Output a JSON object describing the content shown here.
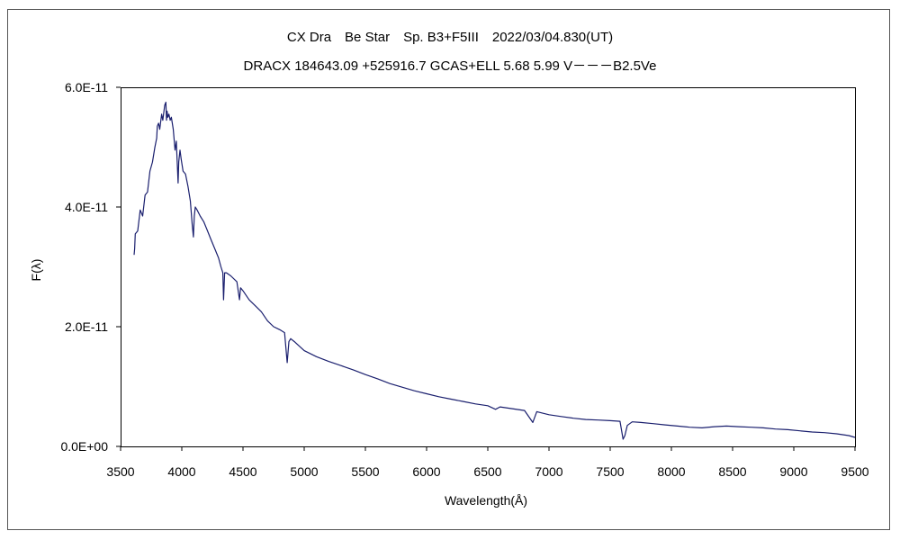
{
  "chart_data": {
    "type": "line",
    "title": "CX Dra　Be Star　Sp. B3+F5III　2022/03/04.830(UT)",
    "subtitle": "DRACX 184643.09 +525916.7 GCAS+ELL 5.68 5.99 V－－－B2.5Ve",
    "xlabel": "Wavelength(Å)",
    "ylabel": "F(λ)",
    "xlim": [
      3500,
      9500
    ],
    "ylim": [
      0,
      6e-11
    ],
    "x_ticks": [
      3500,
      4000,
      4500,
      5000,
      5500,
      6000,
      6500,
      7000,
      7500,
      8000,
      8500,
      9000,
      9500
    ],
    "x_tick_labels": [
      "3500",
      "4000",
      "4500",
      "5000",
      "5500",
      "6000",
      "6500",
      "7000",
      "7500",
      "8000",
      "8500",
      "9000",
      "9500"
    ],
    "y_ticks": [
      0,
      2e-11,
      4e-11,
      6e-11
    ],
    "y_tick_labels": [
      "0.0E+00",
      "2.0E-11",
      "4.0E-11",
      "6.0E-11"
    ],
    "grid": false,
    "legend": "none",
    "colors": {
      "line": "#1a1f6e",
      "frame": "#000000",
      "outer_border": "#555555"
    },
    "series": [
      {
        "x": [
          3610,
          3615,
          3620,
          3640,
          3660,
          3680,
          3700,
          3720,
          3740,
          3760,
          3780,
          3795,
          3800,
          3810,
          3820,
          3835,
          3845,
          3860,
          3870,
          3875,
          3880,
          3885,
          3895,
          3905,
          3915,
          3930,
          3945,
          3955,
          3970,
          3975,
          3985,
          3995,
          4010,
          4030,
          4050,
          4070,
          4085,
          4095,
          4102,
          4110,
          4125,
          4150,
          4180,
          4210,
          4240,
          4270,
          4300,
          4320,
          4335,
          4341,
          4350,
          4365,
          4400,
          4450,
          4471,
          4480,
          4500,
          4550,
          4600,
          4650,
          4700,
          4750,
          4800,
          4840,
          4861,
          4875,
          4890,
          4920,
          5000,
          5100,
          5200,
          5300,
          5400,
          5500,
          5600,
          5700,
          5800,
          5900,
          6000,
          6100,
          6200,
          6300,
          6400,
          6500,
          6563,
          6600,
          6700,
          6800,
          6868,
          6900,
          7000,
          7100,
          7200,
          7300,
          7400,
          7500,
          7580,
          7605,
          7620,
          7640,
          7680,
          7750,
          7850,
          7950,
          8050,
          8150,
          8250,
          8350,
          8450,
          8550,
          8650,
          8750,
          8850,
          8950,
          9050,
          9150,
          9250,
          9350,
          9450,
          9500
        ],
        "y": [
          3.2e-11,
          3.3e-11,
          3.55e-11,
          3.6e-11,
          3.95e-11,
          3.85e-11,
          4.2e-11,
          4.25e-11,
          4.6e-11,
          4.75e-11,
          5e-11,
          5.15e-11,
          5.35e-11,
          5.4e-11,
          5.3e-11,
          5.55e-11,
          5.45e-11,
          5.7e-11,
          5.75e-11,
          5.45e-11,
          5.6e-11,
          5.5e-11,
          5.55e-11,
          5.45e-11,
          5.5e-11,
          5.3e-11,
          4.95e-11,
          5.1e-11,
          4.4e-11,
          4.75e-11,
          4.95e-11,
          4.8e-11,
          4.6e-11,
          4.55e-11,
          4.35e-11,
          4.1e-11,
          3.7e-11,
          3.5e-11,
          3.85e-11,
          4e-11,
          3.95e-11,
          3.85e-11,
          3.75e-11,
          3.6e-11,
          3.45e-11,
          3.3e-11,
          3.15e-11,
          3e-11,
          2.9e-11,
          2.45e-11,
          2.9e-11,
          2.9e-11,
          2.85e-11,
          2.75e-11,
          2.45e-11,
          2.65e-11,
          2.6e-11,
          2.45e-11,
          2.35e-11,
          2.25e-11,
          2.1e-11,
          2e-11,
          1.95e-11,
          1.9e-11,
          1.4e-11,
          1.75e-11,
          1.8e-11,
          1.75e-11,
          1.6e-11,
          1.5e-11,
          1.42e-11,
          1.35e-11,
          1.28e-11,
          1.2e-11,
          1.13e-11,
          1.05e-11,
          9.9e-12,
          9.3e-12,
          8.8e-12,
          8.3e-12,
          7.9e-12,
          7.5e-12,
          7.1e-12,
          6.8e-12,
          6.2e-12,
          6.6e-12,
          6.3e-12,
          6e-12,
          4e-12,
          5.8e-12,
          5.3e-12,
          5e-12,
          4.7e-12,
          4.5e-12,
          4.4e-12,
          4.3e-12,
          4.2e-12,
          1.2e-12,
          1.8e-12,
          3.5e-12,
          4.1e-12,
          4e-12,
          3.8e-12,
          3.6e-12,
          3.4e-12,
          3.2e-12,
          3.1e-12,
          3.3e-12,
          3.4e-12,
          3.3e-12,
          3.2e-12,
          3.1e-12,
          2.9e-12,
          2.8e-12,
          2.6e-12,
          2.4e-12,
          2.3e-12,
          2.1e-12,
          1.8e-12,
          1.5e-12
        ]
      }
    ]
  }
}
